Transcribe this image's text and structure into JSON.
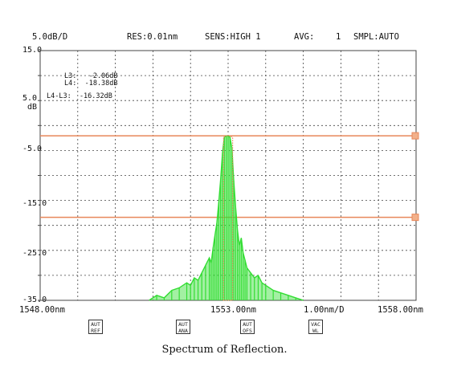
{
  "header": {
    "scale": "5.0dB/D",
    "resolution": "RES:0.01nm",
    "sensitivity": "SENS:HIGH 1",
    "avg_label": "AVG:",
    "avg_value": "1",
    "sampling": "SMPL:AUTO"
  },
  "markers": {
    "l3": "L3:   -2.06dB",
    "l4": "L4:  -18.38dB",
    "diff": "L4-L3:  -16.32dB"
  },
  "softkeys": [
    {
      "top": "AUT",
      "bottom": "REF"
    },
    {
      "top": "AUT",
      "bottom": "ANA"
    },
    {
      "top": "AUT",
      "bottom": "OFS"
    },
    {
      "top": "VAC",
      "bottom": "WL"
    }
  ],
  "caption": "Spectrum of Reflection.",
  "colors": {
    "grid": "#444444",
    "trace": "#33dd33",
    "marker_line": "#e8875a",
    "marker_trace": "#e8875a"
  },
  "chart_data": {
    "type": "line",
    "y_ticks": [
      "15.0",
      "5.0",
      "-5.0",
      "-15.0",
      "-25.0",
      "-35.0"
    ],
    "y_unit": "dB",
    "ylim": [
      -35,
      15
    ],
    "xlim": [
      1548.0,
      1558.0
    ],
    "x_tick_labels": [
      "1548.00nm",
      "1553.00nm",
      "1.00nm/D",
      "1558.00nm"
    ],
    "marker_levels_db": {
      "L3": -2.06,
      "L4": -18.38
    },
    "grid": true,
    "series": [
      {
        "x": [
          1550.9,
          1551.1,
          1551.3,
          1551.5,
          1551.7,
          1551.9,
          1552.0,
          1552.1,
          1552.2,
          1552.3,
          1552.4,
          1552.5,
          1552.55,
          1552.6,
          1552.65,
          1552.7,
          1552.75,
          1552.8,
          1552.85,
          1552.9,
          1552.95,
          1553.0,
          1553.05,
          1553.1,
          1553.15,
          1553.2,
          1553.25,
          1553.3,
          1553.35,
          1553.4,
          1553.45,
          1553.5,
          1553.6,
          1553.7,
          1553.8,
          1553.9,
          1554.0,
          1554.2,
          1554.4,
          1554.6,
          1554.8,
          1555.0
        ],
        "y": [
          -35.0,
          -34.0,
          -34.5,
          -33.0,
          -32.5,
          -31.5,
          -32.0,
          -30.5,
          -31.0,
          -29.5,
          -28.0,
          -26.5,
          -27.5,
          -24.5,
          -22.0,
          -19.5,
          -15.5,
          -11.0,
          -5.5,
          -2.3,
          -2.1,
          -2.1,
          -2.3,
          -4.5,
          -11.0,
          -16.5,
          -21.0,
          -24.0,
          -22.5,
          -25.5,
          -27.0,
          -28.5,
          -29.5,
          -30.5,
          -30.0,
          -31.5,
          -32.0,
          -33.0,
          -33.5,
          -34.0,
          -34.5,
          -35.0
        ]
      }
    ]
  }
}
